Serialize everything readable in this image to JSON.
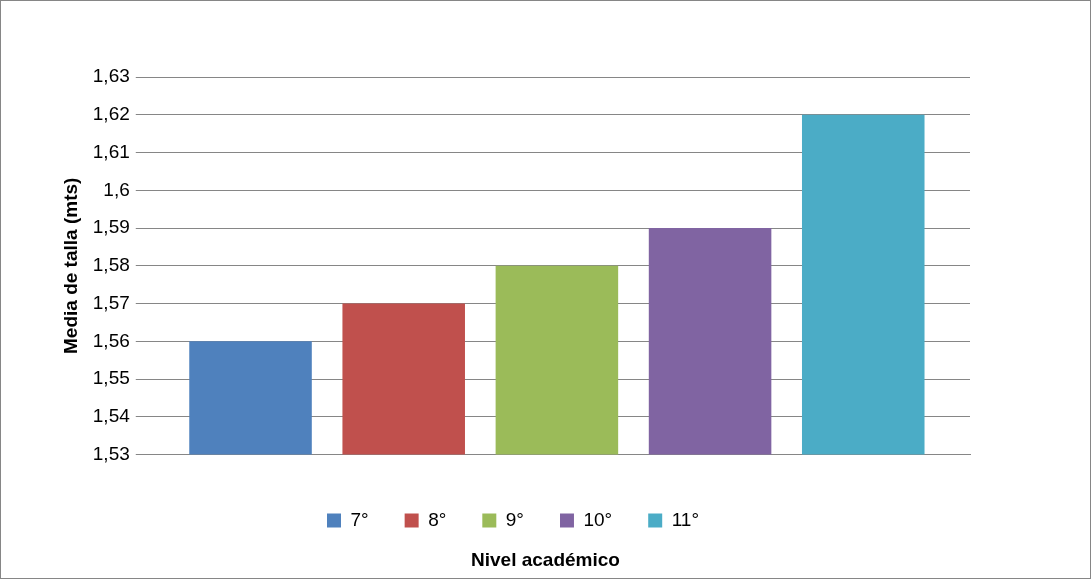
{
  "chart_data": {
    "type": "bar",
    "xlabel": "Nivel académico",
    "ylabel": "Media de talla (mts)",
    "categories": [
      null
    ],
    "series": [
      {
        "name": "7°",
        "color": "#4f81bd",
        "values": [
          1.56
        ]
      },
      {
        "name": "8°",
        "color": "#c0504d",
        "values": [
          1.57
        ]
      },
      {
        "name": "9°",
        "color": "#9bbb59",
        "values": [
          1.58
        ]
      },
      {
        "name": "10°",
        "color": "#8064a2",
        "values": [
          1.59
        ]
      },
      {
        "name": "11°",
        "color": "#4bacc6",
        "values": [
          1.62
        ]
      }
    ],
    "ylim": [
      1.53,
      1.63
    ],
    "yticks": [
      {
        "value": 1.53,
        "label": "1,53"
      },
      {
        "value": 1.54,
        "label": "1,54"
      },
      {
        "value": 1.55,
        "label": "1,55"
      },
      {
        "value": 1.56,
        "label": "1,56"
      },
      {
        "value": 1.57,
        "label": "1,57"
      },
      {
        "value": 1.58,
        "label": "1,58"
      },
      {
        "value": 1.59,
        "label": "1,59"
      },
      {
        "value": 1.6,
        "label": "1,6"
      },
      {
        "value": 1.61,
        "label": "1,61"
      },
      {
        "value": 1.62,
        "label": "1,62"
      },
      {
        "value": 1.63,
        "label": "1,63"
      }
    ],
    "grid": "y",
    "legend": "bottom"
  }
}
